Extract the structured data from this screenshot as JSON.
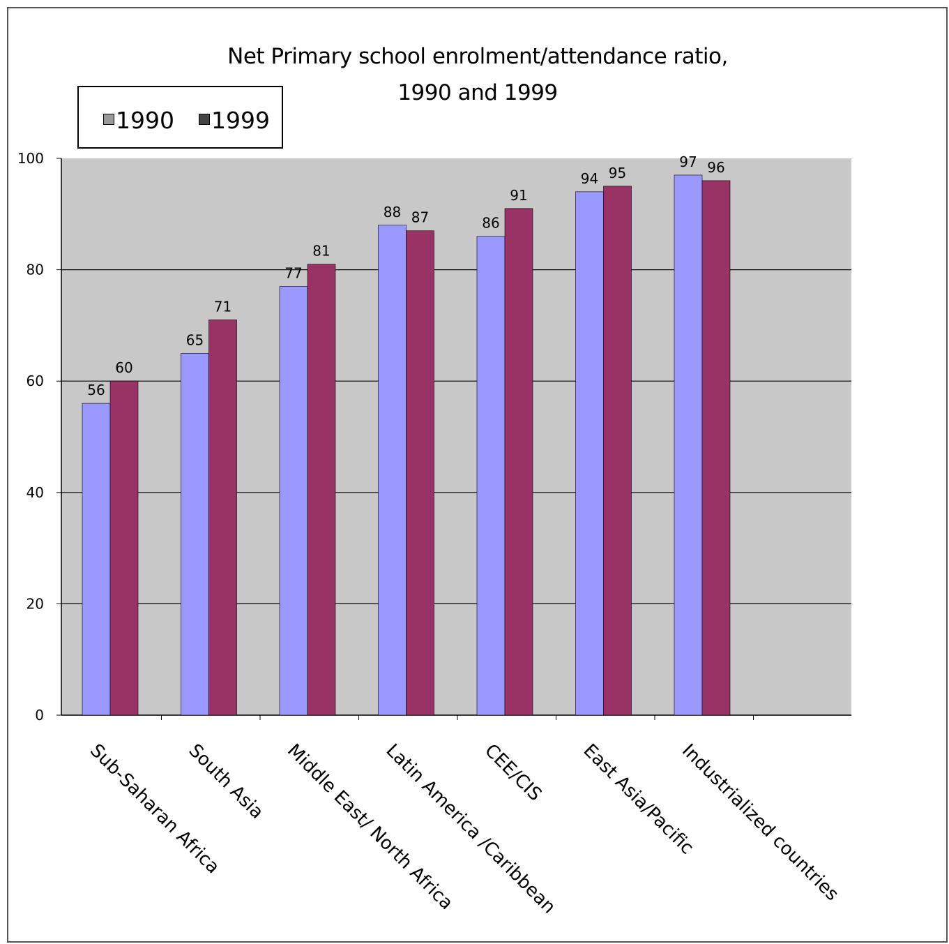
{
  "chart_data": {
    "type": "bar",
    "title": "Net Primary school enrolment/attendance ratio,",
    "subtitle": "1990 and 1999",
    "categories": [
      "Sub-Saharan Africa",
      "South Asia",
      "Middle East/ North Africa",
      "Latin America /Caribbean",
      "CEE/CIS",
      "East Asia/Pacific",
      "Industrialized countries"
    ],
    "series": [
      {
        "name": "1990",
        "color": "#9999ff",
        "values": [
          56,
          65,
          77,
          88,
          86,
          94,
          97
        ]
      },
      {
        "name": "1999",
        "color": "#993366",
        "values": [
          60,
          71,
          81,
          87,
          91,
          95,
          96
        ]
      }
    ],
    "legend_swatch_colors": [
      "#999999",
      "#444444"
    ],
    "yticks": [
      "0",
      "20",
      "40",
      "60",
      "80",
      "100"
    ],
    "ylim": [
      0,
      100
    ],
    "grid": true,
    "legend_position": "top-left",
    "plot_background": "#c8c8c8"
  }
}
